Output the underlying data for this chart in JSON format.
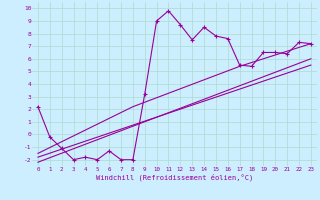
{
  "xlabel": "Windchill (Refroidissement éolien,°C)",
  "bg_color": "#cceeff",
  "grid_color": "#aaddcc",
  "line_color": "#990099",
  "xlim": [
    -0.5,
    23.5
  ],
  "ylim": [
    -2.5,
    10.5
  ],
  "xticks": [
    0,
    1,
    2,
    3,
    4,
    5,
    6,
    7,
    8,
    9,
    10,
    11,
    12,
    13,
    14,
    15,
    16,
    17,
    18,
    19,
    20,
    21,
    22,
    23
  ],
  "yticks": [
    -2,
    -1,
    0,
    1,
    2,
    3,
    4,
    5,
    6,
    7,
    8,
    9,
    10
  ],
  "data_x": [
    0,
    1,
    2,
    3,
    4,
    5,
    6,
    7,
    8,
    9,
    10,
    11,
    12,
    13,
    14,
    15,
    16,
    17,
    18,
    19,
    20,
    21,
    22,
    23
  ],
  "data_y": [
    2.2,
    -0.2,
    -1.1,
    -2.0,
    -1.8,
    -2.0,
    -1.3,
    -2.0,
    -2.0,
    3.2,
    9.0,
    9.8,
    8.7,
    7.5,
    8.5,
    7.8,
    7.6,
    5.5,
    5.4,
    6.5,
    6.5,
    6.4,
    7.3,
    7.2
  ],
  "line1_x": [
    0,
    23
  ],
  "line1_y": [
    -1.8,
    5.5
  ],
  "line2_x": [
    0,
    23
  ],
  "line2_y": [
    -2.2,
    6.0
  ],
  "line3_x": [
    0,
    8,
    17,
    23
  ],
  "line3_y": [
    -1.5,
    2.2,
    5.4,
    7.2
  ]
}
